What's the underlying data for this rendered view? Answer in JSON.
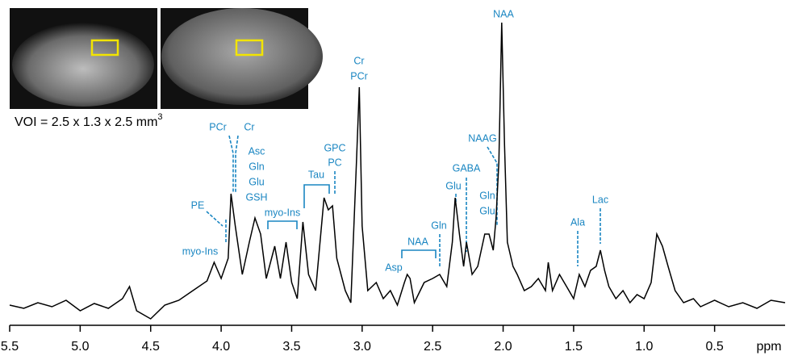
{
  "chart_data": {
    "type": "line",
    "x": [
      5.5,
      5.4,
      5.3,
      5.2,
      5.1,
      5.0,
      4.9,
      4.8,
      4.7,
      4.65,
      4.6,
      4.5,
      4.4,
      4.3,
      4.2,
      4.1,
      4.05,
      4.0,
      3.95,
      3.93,
      3.9,
      3.85,
      3.8,
      3.76,
      3.72,
      3.68,
      3.62,
      3.58,
      3.54,
      3.5,
      3.46,
      3.42,
      3.38,
      3.33,
      3.27,
      3.24,
      3.21,
      3.18,
      3.12,
      3.08,
      3.04,
      3.02,
      3.0,
      2.96,
      2.9,
      2.85,
      2.8,
      2.75,
      2.7,
      2.68,
      2.66,
      2.63,
      2.56,
      2.5,
      2.45,
      2.4,
      2.36,
      2.34,
      2.31,
      2.28,
      2.26,
      2.22,
      2.18,
      2.13,
      2.1,
      2.07,
      2.05,
      2.03,
      2.01,
      1.99,
      1.97,
      1.93,
      1.9,
      1.85,
      1.8,
      1.75,
      1.7,
      1.68,
      1.65,
      1.6,
      1.55,
      1.5,
      1.46,
      1.42,
      1.38,
      1.34,
      1.31,
      1.28,
      1.25,
      1.2,
      1.15,
      1.1,
      1.05,
      1.0,
      0.95,
      0.91,
      0.87,
      0.83,
      0.78,
      0.72,
      0.65,
      0.6,
      0.5,
      0.4,
      0.3,
      0.2,
      0.1,
      0.0
    ],
    "values": [
      22,
      18,
      25,
      20,
      28,
      15,
      24,
      18,
      30,
      45,
      15,
      5,
      22,
      28,
      40,
      52,
      75,
      55,
      80,
      160,
      120,
      60,
      100,
      130,
      110,
      55,
      95,
      55,
      100,
      50,
      30,
      125,
      60,
      40,
      155,
      140,
      145,
      80,
      40,
      25,
      200,
      292,
      120,
      40,
      50,
      30,
      40,
      22,
      50,
      60,
      55,
      25,
      50,
      55,
      60,
      45,
      100,
      155,
      110,
      70,
      100,
      60,
      70,
      110,
      110,
      90,
      130,
      200,
      372,
      220,
      100,
      70,
      60,
      40,
      45,
      55,
      40,
      75,
      40,
      60,
      45,
      30,
      60,
      45,
      65,
      70,
      90,
      65,
      45,
      30,
      40,
      25,
      35,
      30,
      50,
      110,
      95,
      70,
      40,
      25,
      30,
      20,
      28,
      20,
      25,
      18,
      28,
      25
    ],
    "color": "#000000",
    "xlim": [
      5.5,
      0
    ],
    "ylim": [
      0,
      380
    ],
    "xticks": [
      5.5,
      {
        "value": 5,
        "label": "5.0"
      },
      4.5,
      {
        "value": 4,
        "label": "4.0"
      },
      3.5,
      {
        "value": 3,
        "label": "3.0"
      },
      2.5,
      {
        "value": 2,
        "label": "2.0"
      },
      1.5,
      {
        "value": 1,
        "label": "1.0"
      },
      0.5
    ],
    "x_label": "ppm",
    "caption": "VOI = 2.5 x 1.3 x 2.5 mm",
    "caption_superscript": "3",
    "annotations": [
      "NAA",
      "Cr",
      "PCr",
      "PCr",
      "Cr",
      "Asc",
      "Gln",
      "Glu",
      "GSH",
      "GPC",
      "PC",
      "Tau",
      "PE",
      "myo-Ins",
      "myo-Ins",
      "NAAG",
      "GABA",
      "Glu",
      "Gln",
      "Glu",
      "Gln",
      "NAA",
      "Asp",
      "Ala",
      "Lac"
    ]
  }
}
